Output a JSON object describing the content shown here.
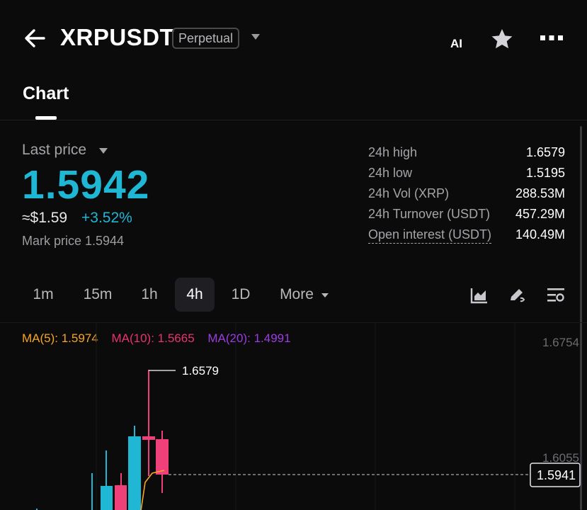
{
  "header": {
    "symbol": "XRPUSDT",
    "contract_type": "Perpetual",
    "ai_label": "AI"
  },
  "tabs": [
    {
      "label": "Chart"
    }
  ],
  "ticker": {
    "last_price_label": "Last price",
    "last_price": "1.5942",
    "usd_value": "≈$1.59",
    "change_pct": "+3.52%",
    "mark_price": "Mark price 1.5944",
    "price_color": "#1fb7d4"
  },
  "stats": [
    {
      "label": "24h high",
      "value": "1.6579"
    },
    {
      "label": "24h low",
      "value": "1.5195"
    },
    {
      "label": "24h Vol (XRP)",
      "value": "288.53M"
    },
    {
      "label": "24h Turnover (USDT)",
      "value": "457.29M"
    },
    {
      "label": "Open interest (USDT)",
      "value": "140.49M"
    }
  ],
  "intervals": [
    "1m",
    "15m",
    "1h",
    "4h",
    "1D"
  ],
  "interval_selected": "4h",
  "more_label": "More",
  "chart": {
    "ma5": "MA(5): 1.5974",
    "ma10": "MA(10): 1.5665",
    "ma20": "MA(20): 1.4991",
    "ma5_color": "#f5a623",
    "ma10_color": "#e8336f",
    "ma20_color": "#9b3de0",
    "up_color": "#1fb7d4",
    "down_color": "#f0407a",
    "y_ticks": [
      "1.6754",
      "1.6055"
    ],
    "high_marker": "1.6579",
    "current_price_tag": "1.5941"
  }
}
